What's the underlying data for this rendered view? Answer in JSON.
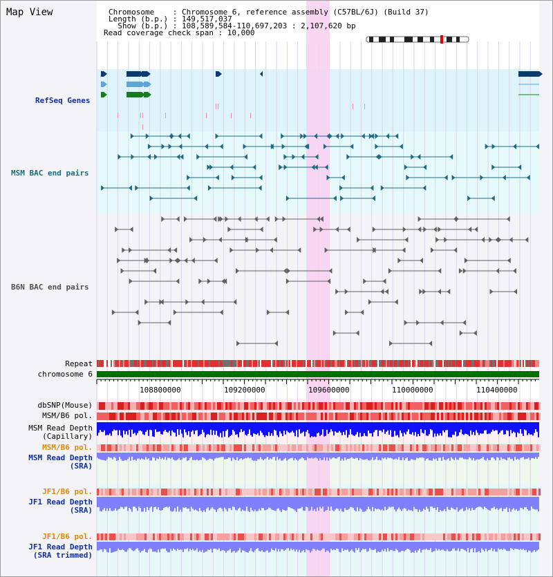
{
  "map": {
    "title": "Map View",
    "info_lines": [
      "Chromosome    : Chromosome 6, reference assembly (C57BL/6J) (Build 37)",
      "Length (b.p.) : 149,517,037",
      "  Show (b.p.) : 108,589,584-110,697,203 : 2,107,620 bp",
      "Read coverage check span : 10,000"
    ]
  },
  "tracks": {
    "refseq_genes": "RefSeq Genes",
    "msm_bac": "MSM BAC end pairs",
    "b6n_bac": "B6N BAC end pairs",
    "repeat": "Repeat",
    "chromosome": "chromosome 6",
    "dbsnp": "dbSNP(Mouse)",
    "msm_b6_pol": "MSM/B6 pol.",
    "msm_depth_cap_1": "MSM Read Depth",
    "msm_depth_cap_2": "(Capillary)",
    "msm_b6_pol2": "MSM/B6 pol.",
    "msm_depth_sra_1": "MSM Read Depth",
    "msm_depth_sra_2": "(SRA)",
    "jf1_b6_pol": "JF1/B6 pol.",
    "jf1_depth_sra_1": "JF1 Read Depth",
    "jf1_depth_sra_2": "(SRA)",
    "jf1_b6_pol2": "JF1/B6 pol.",
    "jf1_depth_trim_1": "JF1 Read Depth",
    "jf1_depth_trim_2": "(SRA trimmed)"
  },
  "axis": {
    "ticks": [
      "108800000",
      "109200000",
      "109600000",
      "110000000",
      "110400000"
    ]
  },
  "colors": {
    "gene_navy": "#0a3a6e",
    "gene_lightblue": "#5ea6d6",
    "gene_green": "#1a7a20",
    "msm_teal": "#1f6a82",
    "b6n_gray": "#606060",
    "highlight": "#f8d0f0",
    "chrom_green": "#007000",
    "snp_red": "#e03030",
    "depth_blue": "#1010ff",
    "depth_light": "#8080ff",
    "label_orange": "#e08a00",
    "label_blue": "#1030a0"
  }
}
